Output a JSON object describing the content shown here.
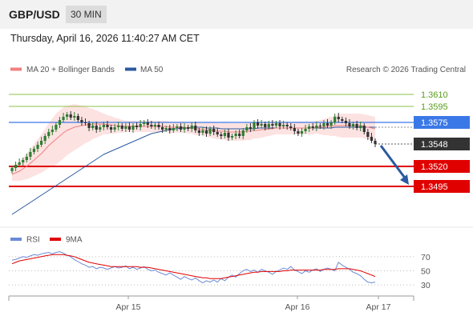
{
  "header": {
    "pair": "GBP/USD",
    "timeframe": "30 MIN",
    "datetime": "Thursday, April 16, 2026 11:40:27 AM CET"
  },
  "legend": {
    "ma20": "MA 20 + Bollinger Bands",
    "ma50": "MA 50",
    "credit": "Research © 2026 Trading Central",
    "rsi": "RSI",
    "ma9": "9MA"
  },
  "colors": {
    "ma20": "#f08080",
    "ma50": "#2a5aa0",
    "bands": "#fde2e2",
    "candle": "#2e7d32",
    "resistance": "#8bc34a",
    "pivot": "#3b78e7",
    "support": "#e00000",
    "current": "#333333",
    "arrow": "#2a5aa0",
    "rsi": "#6a8ad8",
    "rsi_ma": "#e00000"
  },
  "chart_data": [
    {
      "type": "candlestick",
      "name": "price",
      "x_ticks": [
        "Apr 15",
        "Apr 16",
        "Apr 17"
      ],
      "ylim": [
        1.3445,
        1.3628
      ],
      "price_levels": [
        {
          "value": 1.361,
          "label": "1.3610",
          "kind": "resistance"
        },
        {
          "value": 1.3595,
          "label": "1.3595",
          "kind": "resistance"
        },
        {
          "value": 1.3575,
          "label": "1.3575",
          "kind": "pivot"
        },
        {
          "value": 1.3548,
          "label": "1.3548",
          "kind": "current"
        },
        {
          "value": 1.352,
          "label": "1.3520",
          "kind": "support"
        },
        {
          "value": 1.3495,
          "label": "1.3495",
          "kind": "support"
        }
      ],
      "close": [
        1.3518,
        1.3522,
        1.3525,
        1.3528,
        1.3532,
        1.3538,
        1.3542,
        1.3547,
        1.3552,
        1.3558,
        1.3563,
        1.3566,
        1.3572,
        1.3578,
        1.3582,
        1.3585,
        1.3581,
        1.3583,
        1.3578,
        1.3575,
        1.3574,
        1.3568,
        1.3571,
        1.3566,
        1.3569,
        1.3572,
        1.3569,
        1.3566,
        1.3569,
        1.3571,
        1.3567,
        1.357,
        1.3566,
        1.3571,
        1.3569,
        1.3573,
        1.3575,
        1.3572,
        1.357,
        1.3572,
        1.3569,
        1.3566,
        1.3568,
        1.3565,
        1.3568,
        1.357,
        1.3566,
        1.3569,
        1.3567,
        1.3571,
        1.3565,
        1.3562,
        1.3565,
        1.3561,
        1.3567,
        1.3563,
        1.356,
        1.3558,
        1.3562,
        1.3556,
        1.3558,
        1.3561,
        1.3558,
        1.3565,
        1.3569,
        1.3567,
        1.3575,
        1.3571,
        1.3573,
        1.3569,
        1.3573,
        1.3571,
        1.3574,
        1.357,
        1.3572,
        1.357,
        1.3568,
        1.3564,
        1.3561,
        1.3564,
        1.3567,
        1.357,
        1.3568,
        1.3571,
        1.357,
        1.3574,
        1.3571,
        1.3575,
        1.3582,
        1.3579,
        1.3577,
        1.3574,
        1.357,
        1.3573,
        1.3568,
        1.3571,
        1.3563,
        1.3557,
        1.3552,
        1.3548
      ],
      "ma20": [
        1.351,
        1.3512,
        1.3514,
        1.3517,
        1.352,
        1.3524,
        1.3528,
        1.3532,
        1.3536,
        1.3541,
        1.3546,
        1.355,
        1.3554,
        1.3558,
        1.3562,
        1.3565,
        1.3567,
        1.3569,
        1.357,
        1.3571,
        1.3572,
        1.3572,
        1.3573,
        1.3573,
        1.3573,
        1.3573,
        1.3572,
        1.3572,
        1.3571,
        1.3571,
        1.357,
        1.357,
        1.357,
        1.357,
        1.357,
        1.357,
        1.357,
        1.357,
        1.357,
        1.357,
        1.357,
        1.357,
        1.357,
        1.3569,
        1.3569,
        1.3569,
        1.3569,
        1.3569,
        1.3568,
        1.3568,
        1.3567,
        1.3567,
        1.3566,
        1.3566,
        1.3565,
        1.3565,
        1.3564,
        1.3564,
        1.3564,
        1.3563,
        1.3563,
        1.3563,
        1.3563,
        1.3563,
        1.3564,
        1.3564,
        1.3565,
        1.3565,
        1.3566,
        1.3566,
        1.3567,
        1.3567,
        1.3568,
        1.3568,
        1.3568,
        1.3568,
        1.3568,
        1.3568,
        1.3568,
        1.3568,
        1.3568,
        1.3568,
        1.3568,
        1.3569,
        1.3569,
        1.3569,
        1.357,
        1.357,
        1.3571,
        1.3571,
        1.3571,
        1.3571,
        1.3571,
        1.3571,
        1.3571,
        1.3571,
        1.357,
        1.3569,
        1.3568,
        1.3567
      ],
      "ma50": [
        1.346,
        1.3463,
        1.3466,
        1.3469,
        1.3472,
        1.3475,
        1.3478,
        1.3481,
        1.3484,
        1.3487,
        1.349,
        1.3493,
        1.3496,
        1.3499,
        1.3502,
        1.3505,
        1.3508,
        1.3511,
        1.3514,
        1.3517,
        1.352,
        1.3523,
        1.3526,
        1.3529,
        1.3532,
        1.3535,
        1.3537,
        1.3539,
        1.3541,
        1.3543,
        1.3545,
        1.3547,
        1.3549,
        1.3551,
        1.3553,
        1.3555,
        1.3557,
        1.3559,
        1.3561,
        1.3562,
        1.3563,
        1.3564,
        1.3565,
        1.3566,
        1.3567,
        1.3567,
        1.3568,
        1.3568,
        1.3568,
        1.3569,
        1.3569,
        1.3569,
        1.3569,
        1.3568,
        1.3568,
        1.3568,
        1.3568,
        1.3567,
        1.3567,
        1.3567,
        1.3567,
        1.3567,
        1.3567,
        1.3567,
        1.3567,
        1.3567,
        1.3567,
        1.3568,
        1.3568,
        1.3568,
        1.3568,
        1.3568,
        1.3568,
        1.3568,
        1.3568,
        1.3568,
        1.3568,
        1.3568,
        1.3568,
        1.3568,
        1.3568,
        1.3568,
        1.3568,
        1.3568,
        1.3568,
        1.3568,
        1.3568,
        1.3568,
        1.3569,
        1.3569,
        1.3569,
        1.3569,
        1.3569,
        1.3569,
        1.3569,
        1.3569,
        1.3569,
        1.3569,
        1.3569,
        1.3569
      ],
      "band_width": [
        0.0008,
        0.001,
        0.0012,
        0.0014,
        0.0016,
        0.0018,
        0.002,
        0.0022,
        0.0024,
        0.0026,
        0.0028,
        0.003,
        0.0032,
        0.0032,
        0.0032,
        0.0031,
        0.003,
        0.0029,
        0.0027,
        0.0025,
        0.0023,
        0.0021,
        0.0019,
        0.0017,
        0.0015,
        0.0013,
        0.0012,
        0.0011,
        0.001,
        0.0009,
        0.0008,
        0.0007,
        0.0007,
        0.0007,
        0.0007,
        0.0007,
        0.0007,
        0.0007,
        0.0007,
        0.0007,
        0.0007,
        0.0007,
        0.0007,
        0.0007,
        0.0007,
        0.0007,
        0.0007,
        0.0007,
        0.0007,
        0.0007,
        0.0008,
        0.0008,
        0.0008,
        0.0009,
        0.0009,
        0.001,
        0.001,
        0.001,
        0.0011,
        0.0011,
        0.0011,
        0.0011,
        0.0011,
        0.0011,
        0.0011,
        0.0011,
        0.001,
        0.001,
        0.001,
        0.0009,
        0.0009,
        0.0008,
        0.0008,
        0.0008,
        0.0008,
        0.0008,
        0.0008,
        0.0008,
        0.0008,
        0.0008,
        0.0008,
        0.0008,
        0.0008,
        0.0008,
        0.0009,
        0.001,
        0.0011,
        0.0012,
        0.0013,
        0.0014,
        0.0015,
        0.0015,
        0.0015,
        0.0015,
        0.0015,
        0.0015,
        0.0015,
        0.0015,
        0.0015,
        0.0015
      ],
      "forecast_target": 1.3495
    },
    {
      "type": "line",
      "name": "rsi",
      "ylim": [
        20,
        80
      ],
      "y_ticks": [
        70,
        50,
        30
      ],
      "series": [
        {
          "name": "RSI",
          "values": [
            65,
            66,
            68,
            70,
            69,
            71,
            73,
            72,
            74,
            75,
            76,
            74,
            76,
            77,
            75,
            72,
            70,
            66,
            63,
            60,
            58,
            55,
            56,
            53,
            55,
            54,
            52,
            54,
            56,
            54,
            55,
            57,
            53,
            55,
            52,
            54,
            56,
            52,
            50,
            51,
            48,
            46,
            44,
            47,
            44,
            41,
            38,
            42,
            39,
            37,
            40,
            36,
            33,
            36,
            34,
            37,
            34,
            39,
            36,
            41,
            44,
            41,
            46,
            50,
            52,
            49,
            51,
            48,
            52,
            50,
            48,
            45,
            49,
            51,
            54,
            52,
            56,
            51,
            49,
            46,
            50,
            48,
            51,
            53,
            49,
            52,
            54,
            52,
            50,
            62,
            58,
            55,
            52,
            48,
            46,
            43,
            38,
            34,
            33,
            34
          ]
        },
        {
          "name": "9MA",
          "values": [
            60,
            62,
            64,
            65,
            66,
            67,
            68,
            69,
            70,
            71,
            72,
            73,
            73,
            73,
            73,
            72,
            71,
            70,
            68,
            66,
            64,
            62,
            61,
            60,
            59,
            58,
            57,
            56,
            56,
            56,
            56,
            56,
            56,
            56,
            56,
            55,
            55,
            55,
            54,
            53,
            52,
            51,
            50,
            49,
            48,
            47,
            46,
            45,
            44,
            43,
            42,
            41,
            40,
            40,
            39,
            39,
            39,
            39,
            40,
            41,
            42,
            43,
            44,
            45,
            46,
            47,
            48,
            48,
            49,
            49,
            49,
            49,
            49,
            49,
            50,
            50,
            51,
            51,
            51,
            51,
            51,
            51,
            51,
            51,
            51,
            52,
            52,
            52,
            52,
            53,
            53,
            53,
            53,
            52,
            51,
            50,
            48,
            46,
            44,
            42
          ]
        }
      ]
    }
  ]
}
